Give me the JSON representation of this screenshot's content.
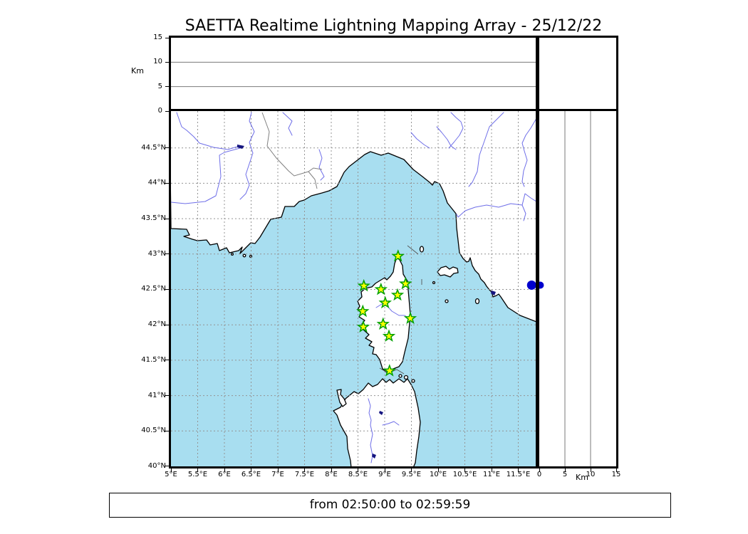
{
  "title": "SAETTA Realtime Lightning Mapping Array - 25/12/22",
  "time_window_label": "from 02:50:00 to 02:59:59",
  "chart_data": {
    "type": "scatter",
    "title": "SAETTA Realtime Lightning Mapping Array - 25/12/22",
    "time_window": {
      "from": "02:50:00",
      "to": "02:59:59"
    },
    "layout": "LMA composite: altitude-vs-longitude top panel, lon-lat map, altitude-vs-latitude side panel, empty altitude histogram box top-right",
    "map_panel": {
      "grid": "dashed",
      "lon_range_deg": [
        5.0,
        11.83
      ],
      "lat_range_deg": [
        40.0,
        45.02
      ],
      "lon_ticks_deg": [
        5,
        5.5,
        6,
        6.5,
        7,
        7.5,
        8,
        8.5,
        9,
        9.5,
        10,
        10.5,
        11,
        11.5
      ],
      "lon_tick_labels": [
        "5°E",
        "5.5°E",
        "6°E",
        "6.5°E",
        "7°E",
        "7.5°E",
        "8°E",
        "8.5°E",
        "9°E",
        "9.5°E",
        "10°E",
        "10.5°E",
        "11°E",
        "11.5°E"
      ],
      "lat_ticks_deg": [
        40,
        40.5,
        41,
        41.5,
        42,
        42.5,
        43,
        43.5,
        44,
        44.5
      ],
      "lat_tick_labels": [
        "40°N",
        "40.5°N",
        "41°N",
        "41.5°N",
        "42°N",
        "42.5°N",
        "43°N",
        "43.5°N",
        "44°N",
        "44.5°N"
      ]
    },
    "altitude_axis": {
      "label": "Km",
      "range_km": [
        0,
        15
      ],
      "ticks_km": [
        0,
        5,
        10,
        15
      ],
      "tick_labels": [
        "0",
        "5",
        "10",
        "15"
      ]
    },
    "stations": [
      {
        "lon": 9.25,
        "lat": 42.97
      },
      {
        "lon": 8.61,
        "lat": 42.55
      },
      {
        "lon": 8.93,
        "lat": 42.5
      },
      {
        "lon": 9.39,
        "lat": 42.58
      },
      {
        "lon": 9.24,
        "lat": 42.42
      },
      {
        "lon": 9.01,
        "lat": 42.31
      },
      {
        "lon": 8.59,
        "lat": 42.19
      },
      {
        "lon": 9.48,
        "lat": 42.09
      },
      {
        "lon": 8.97,
        "lat": 42.01
      },
      {
        "lon": 8.6,
        "lat": 41.97
      },
      {
        "lon": 9.08,
        "lat": 41.84
      },
      {
        "lon": 9.09,
        "lat": 41.35
      }
    ],
    "lightning_sources": [
      {
        "lon": 11.75,
        "lat": 42.56,
        "alt_km": 0.2
      }
    ],
    "colors": {
      "sea": "#a8def0",
      "land": "#ffffff",
      "coastline": "#000000",
      "river": "#6f6fe8",
      "lake": "#151580",
      "border_line": "#808080",
      "grid": "#949494",
      "station_fill": "#ffff00",
      "station_edge": "#00a000",
      "source_point": "#0000cc"
    }
  }
}
